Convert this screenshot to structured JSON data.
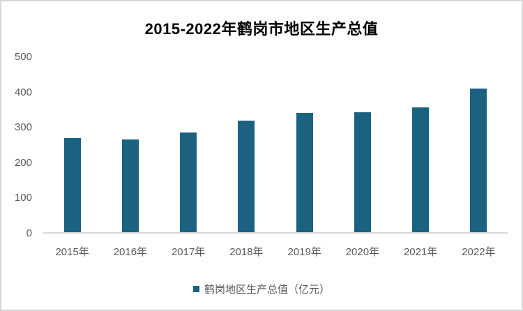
{
  "page": {
    "title": "2015-2022年鹤岗市地区生产总值"
  },
  "legend": {
    "label": "鹤岗地区生产总值（亿元）"
  },
  "colors": {
    "bar": "#1A6280",
    "axis_line": "#D9D9D9",
    "frame_border": "#D6D6D6",
    "tick_text": "#595959",
    "title_text": "#000000"
  },
  "chart_data": {
    "type": "bar",
    "title": "2015-2022年鹤岗市地区生产总值",
    "categories": [
      "2015年",
      "2016年",
      "2017年",
      "2018年",
      "2019年",
      "2020年",
      "2021年",
      "2022年"
    ],
    "values": [
      266,
      263,
      283,
      316,
      338,
      340,
      354,
      408
    ],
    "series": [
      {
        "name": "鹤岗地区生产总值（亿元）",
        "values": [
          266,
          263,
          283,
          316,
          338,
          340,
          354,
          408
        ]
      }
    ],
    "xlabel": "",
    "ylabel": "",
    "ylim": [
      0,
      500
    ],
    "yticks": [
      0,
      100,
      200,
      300,
      400,
      500
    ],
    "grid": false,
    "legend_position": "bottom",
    "bar_color": "#1A6280"
  }
}
